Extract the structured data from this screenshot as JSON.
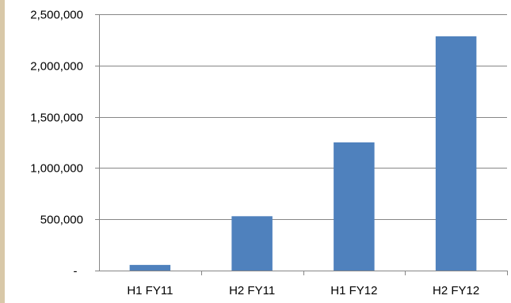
{
  "chart_data": {
    "type": "bar",
    "title": "",
    "xlabel": "",
    "ylabel": "",
    "categories": [
      "H1 FY11",
      "H2 FY11",
      "H1 FY12",
      "H2 FY12"
    ],
    "values": [
      55000,
      530000,
      1250000,
      2285000
    ],
    "ylim": [
      0,
      2500000
    ],
    "yticks": [
      0,
      500000,
      1000000,
      1500000,
      2000000,
      2500000
    ],
    "ytick_labels": [
      "-",
      "500,000",
      "1,000,000",
      "1,500,000",
      "2,000,000",
      "2,500,000"
    ],
    "grid": true,
    "legend": "none",
    "colors": {
      "bar": "#4f81bd",
      "grid": "#868686",
      "axis": "#868686",
      "frame_accent": "#d8c8a8"
    }
  }
}
